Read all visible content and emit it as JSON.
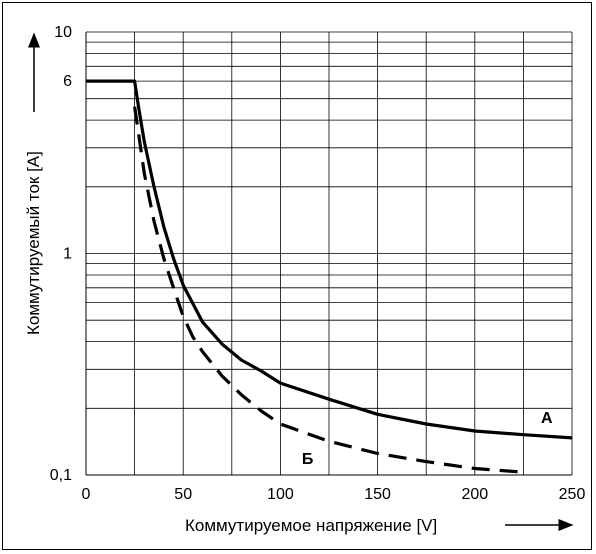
{
  "chart_data": {
    "type": "line",
    "title": "",
    "xlabel": "Коммутируемое напряжение [V]",
    "ylabel": "Коммутируемый ток [A]",
    "xlim": [
      0,
      250
    ],
    "ylim": [
      0.1,
      10
    ],
    "yscale": "log",
    "grid": true,
    "x_ticks": [
      0,
      50,
      100,
      150,
      200,
      250
    ],
    "x_tick_labels": [
      "0",
      "50",
      "100",
      "150",
      "200",
      "250"
    ],
    "x_minor_ticks": [
      25,
      75,
      125,
      175,
      225
    ],
    "y_ticks": [
      0.1,
      1,
      6,
      10
    ],
    "y_tick_labels": [
      "0,1",
      "1",
      "6",
      "10"
    ],
    "y_grid": [
      0.2,
      0.3,
      0.4,
      0.5,
      0.6,
      0.7,
      0.8,
      0.9,
      1,
      2,
      3,
      4,
      5,
      6,
      7,
      8,
      9,
      10
    ],
    "series": [
      {
        "name": "A",
        "style": "solid",
        "color": "#000000",
        "x": [
          0,
          25,
          27,
          30,
          35,
          40,
          45,
          50,
          60,
          70,
          80,
          90,
          100,
          125,
          150,
          175,
          200,
          225,
          250
        ],
        "y": [
          6,
          6,
          4.6,
          3.2,
          2.0,
          1.32,
          0.95,
          0.72,
          0.49,
          0.39,
          0.33,
          0.295,
          0.26,
          0.22,
          0.188,
          0.17,
          0.158,
          0.152,
          0.147
        ]
      },
      {
        "name": "Б",
        "style": "dashed",
        "color": "#000000",
        "x": [
          25,
          27,
          30,
          35,
          40,
          45,
          50,
          55,
          60,
          70,
          80,
          90,
          100,
          125,
          150,
          175,
          200,
          225
        ],
        "y": [
          4.6,
          3.5,
          2.3,
          1.4,
          0.95,
          0.7,
          0.52,
          0.42,
          0.36,
          0.28,
          0.23,
          0.195,
          0.17,
          0.142,
          0.125,
          0.115,
          0.107,
          0.103
        ]
      }
    ]
  }
}
